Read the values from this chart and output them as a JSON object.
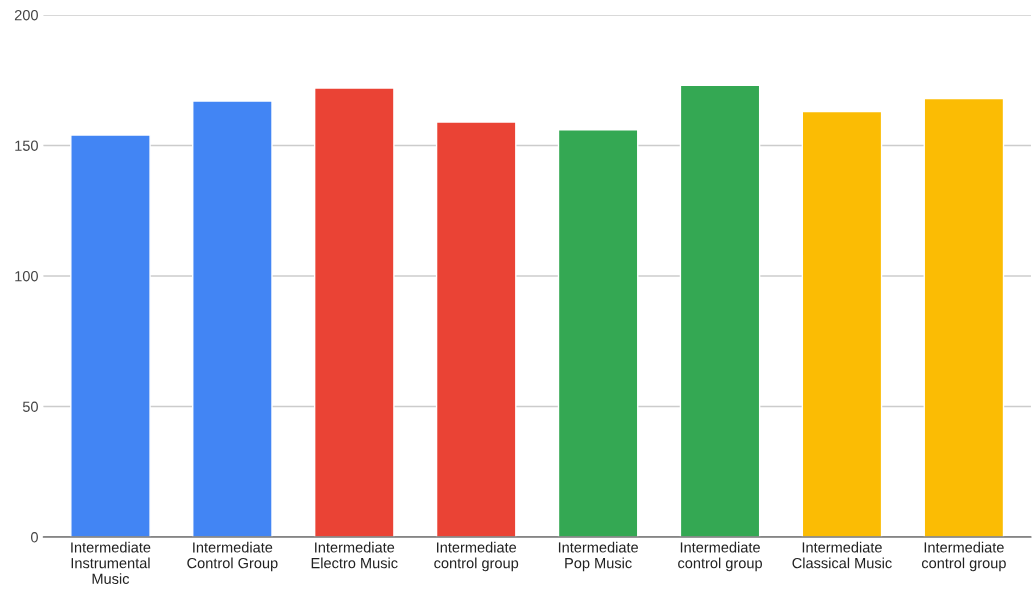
{
  "chart_data": {
    "type": "bar",
    "categories": [
      "Intermediate Instrumental Music",
      "Intermediate Control Group",
      "Intermediate Electro Music",
      "Intermediate control group",
      "Intermediate Pop Music",
      "Intermediate control group",
      "Intermediate Classical Music",
      "Intermediate control group"
    ],
    "values": [
      154,
      167,
      172,
      159,
      156,
      173,
      163,
      168
    ],
    "colors": [
      "#4285f4",
      "#4285f4",
      "#ea4335",
      "#ea4335",
      "#34a853",
      "#34a853",
      "#fbbc04",
      "#fbbc04"
    ],
    "ylim": [
      0,
      200
    ],
    "yticks": [
      0,
      50,
      100,
      150,
      200
    ],
    "grid": "y"
  }
}
